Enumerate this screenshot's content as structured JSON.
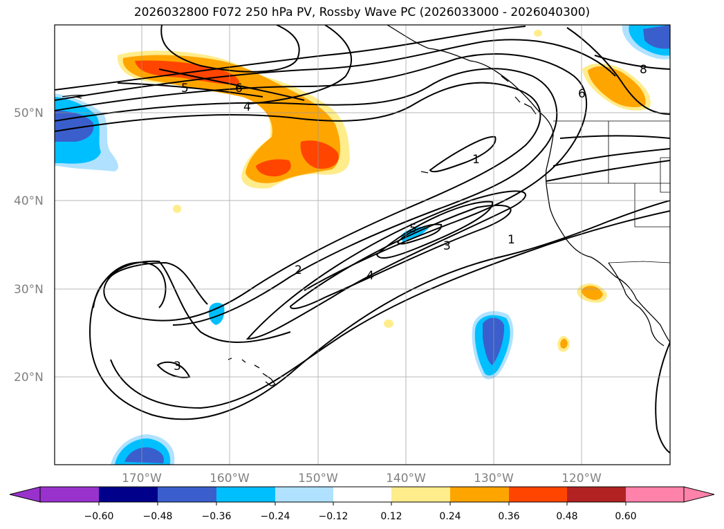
{
  "title": "2026032800 F072 250 hPa PV, Rossby Wave PC (2026033000 - 2026040300)",
  "lat_ticks": [
    "50°N",
    "40°N",
    "30°N",
    "20°N"
  ],
  "lon_ticks": [
    "170°W",
    "160°W",
    "150°W",
    "140°W",
    "130°W",
    "120°W"
  ],
  "colorbar": {
    "labels": [
      "−0.60",
      "−0.48",
      "−0.36",
      "−0.24",
      "−0.12",
      "0.12",
      "0.24",
      "0.36",
      "0.48",
      "0.60"
    ],
    "colors": [
      "#9932cc",
      "#00008b",
      "#3a5fcd",
      "#00bfff",
      "#b0e2ff",
      "#ffffff",
      "#ffec8b",
      "#ffa500",
      "#ff4500",
      "#b22222",
      "#ff82ab"
    ]
  },
  "contour_labels": [
    "5",
    "6",
    "4",
    "1",
    "2",
    "4",
    "5",
    "3",
    "1",
    "3",
    "6",
    "8"
  ],
  "map_extent": {
    "lon_min": -180,
    "lon_max": -110,
    "lat_min": 10,
    "lat_max": 60
  },
  "fill_colors": {
    "positive_1": "#ffec8b",
    "positive_2": "#ffa500",
    "positive_3": "#ff4500",
    "negative_1": "#b0e2ff",
    "negative_2": "#00bfff",
    "negative_3": "#3a5fcd"
  }
}
